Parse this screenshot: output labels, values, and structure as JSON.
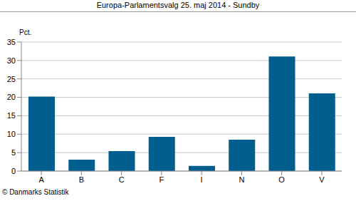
{
  "chart_data": {
    "type": "bar",
    "title": "Europa-Parlamentsvalg 25. maj 2014 - Sundby",
    "ylabel": "Pct.",
    "annotations": [
      "© Danmarks Statistik"
    ],
    "categories": [
      "A",
      "B",
      "C",
      "F",
      "I",
      "N",
      "O",
      "V"
    ],
    "values": [
      20.2,
      3.1,
      5.4,
      9.3,
      1.4,
      8.5,
      31.1,
      21.1
    ],
    "color": "#005f8f",
    "ylim": [
      0,
      35
    ],
    "yticks": [
      0,
      5,
      10,
      15,
      20,
      25,
      30,
      35
    ],
    "grid": true
  }
}
